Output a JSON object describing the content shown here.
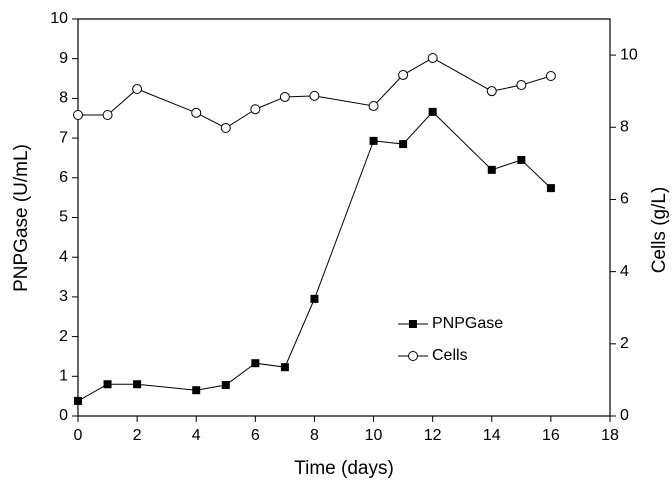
{
  "chart_data": {
    "type": "line",
    "x_label": "Time (days)",
    "y_label": "PNPGase (U/mL)",
    "y2_label": "Cells (g/L)",
    "x": [
      0,
      1,
      2,
      4,
      5,
      6,
      7,
      8,
      10,
      11,
      12,
      14,
      15,
      16
    ],
    "series": [
      {
        "name": "PNPGase",
        "color": "#000000",
        "marker": "filled-square",
        "values": [
          0.38,
          0.8,
          0.8,
          0.65,
          0.78,
          1.33,
          1.23,
          2.95,
          6.93,
          6.85,
          7.66,
          6.2,
          6.45,
          5.74
        ]
      },
      {
        "name": "Cells",
        "color": "#000000",
        "marker": "open-circle",
        "axis": "y2",
        "values": [
          8.34,
          8.34,
          9.06,
          8.4,
          7.98,
          8.5,
          8.84,
          8.87,
          8.59,
          9.45,
          9.92,
          9.0,
          9.17,
          9.42
        ]
      }
    ],
    "xlim": [
      0,
      18
    ],
    "xticks": [
      0,
      2,
      4,
      6,
      8,
      10,
      12,
      14,
      16,
      18
    ],
    "ylim": [
      0,
      10
    ],
    "yticks": [
      0,
      1,
      2,
      3,
      4,
      5,
      6,
      7,
      8,
      9,
      10
    ],
    "y2lim": [
      0,
      11
    ],
    "y2ticks": [
      0,
      2,
      4,
      6,
      8,
      10
    ],
    "legend": "lower-right"
  }
}
